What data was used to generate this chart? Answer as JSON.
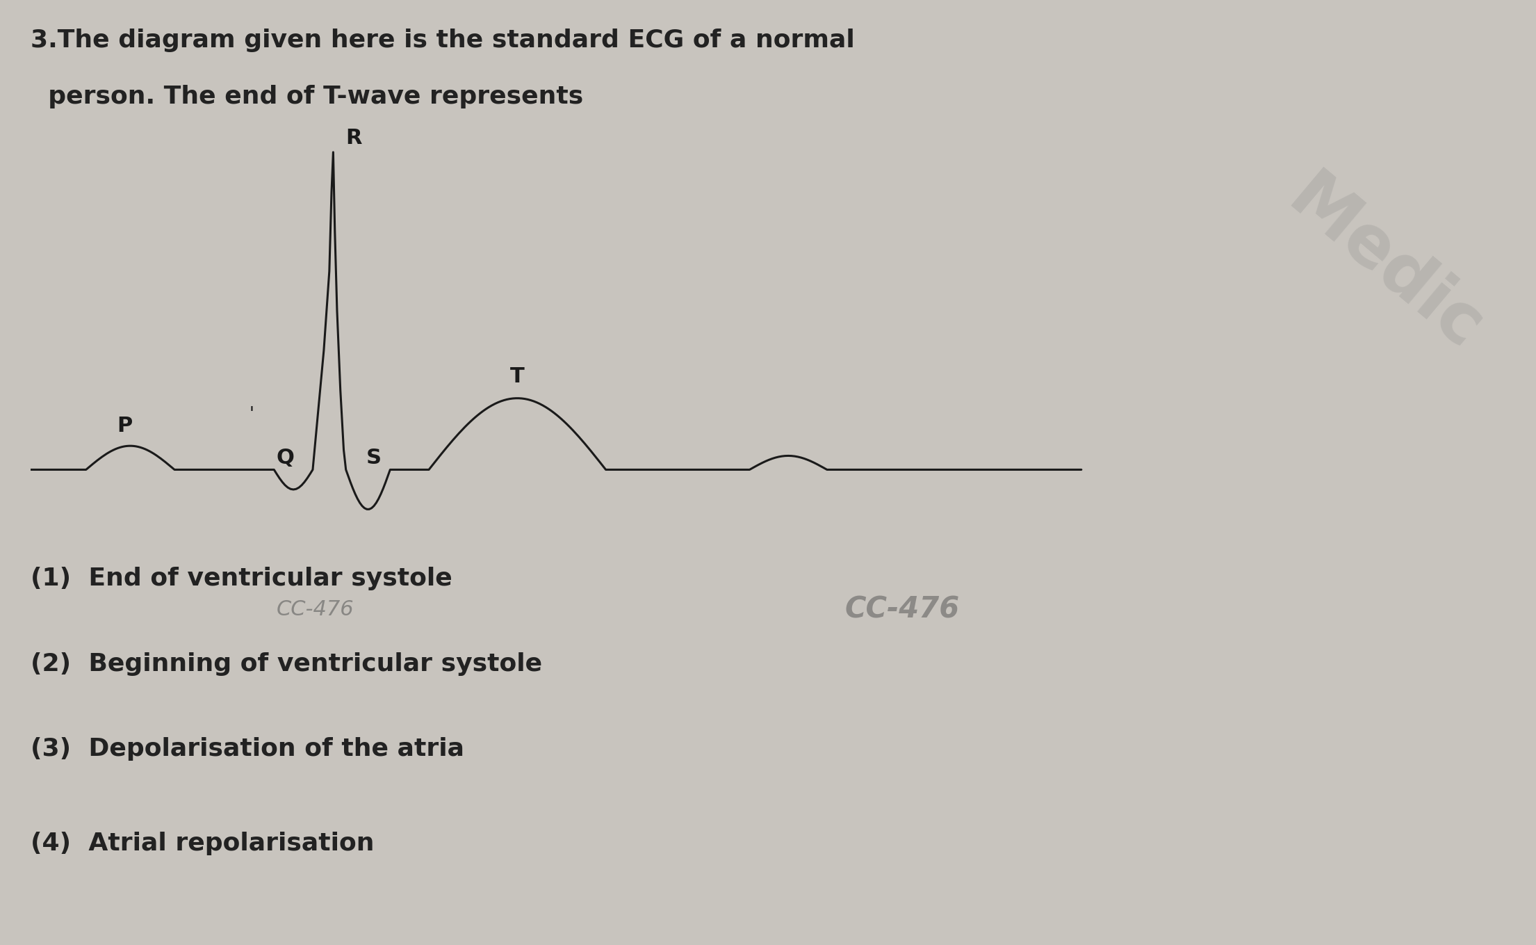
{
  "background_color": "#c8c4be",
  "title_line1": "3.The diagram given here is the standard ECG of a normal",
  "title_line2": "  person. The end of T-wave represents",
  "options": [
    "(1)  End of ventricular systole",
    "(2)  Beginning of ventricular systole",
    "(3)  Depolarisation of the atria",
    "(4)  Atrial repolarisation"
  ],
  "watermark1": "CC-476",
  "watermark2": "CC-476",
  "ecg_color": "#1a1a1a",
  "label_color": "#1a1a1a",
  "text_color": "#222222"
}
